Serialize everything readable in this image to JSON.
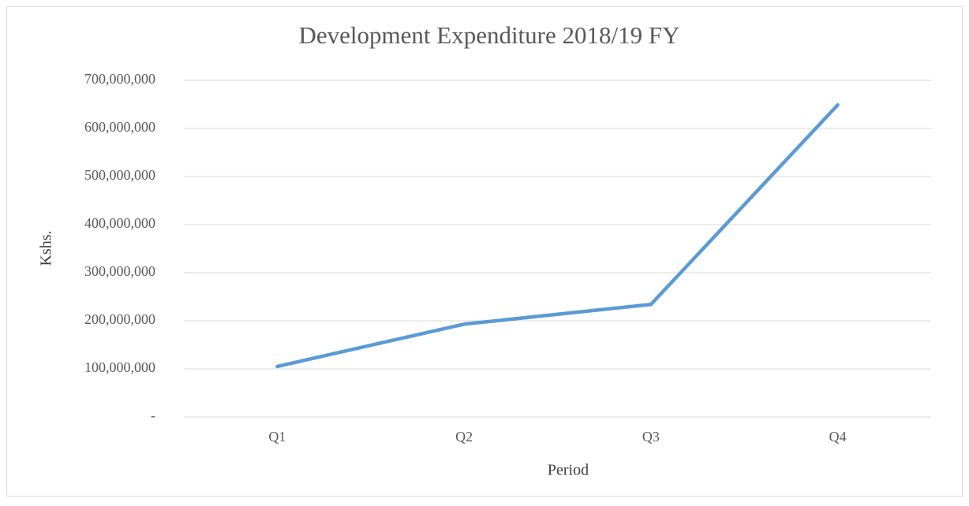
{
  "chart_data": {
    "type": "line",
    "title": "Development Expenditure 2018/19 FY",
    "x_label": "Period",
    "y_label": "Kshs.",
    "categories": [
      "Q1",
      "Q2",
      "Q3",
      "Q4"
    ],
    "series": [
      {
        "name": "Development Expenditure",
        "color": "#5b9bd5",
        "values": [
          105000000,
          193000000,
          234000000,
          649000000
        ]
      }
    ],
    "ylim": [
      0,
      700000000
    ],
    "yticks": [
      {
        "value": 0,
        "label": "-"
      },
      {
        "value": 100000000,
        "label": "100,000,000"
      },
      {
        "value": 200000000,
        "label": "200,000,000"
      },
      {
        "value": 300000000,
        "label": "300,000,000"
      },
      {
        "value": 400000000,
        "label": "400,000,000"
      },
      {
        "value": 500000000,
        "label": "500,000,000"
      },
      {
        "value": 600000000,
        "label": "600,000,000"
      },
      {
        "value": 700000000,
        "label": "700,000,000"
      }
    ],
    "grid": true
  }
}
